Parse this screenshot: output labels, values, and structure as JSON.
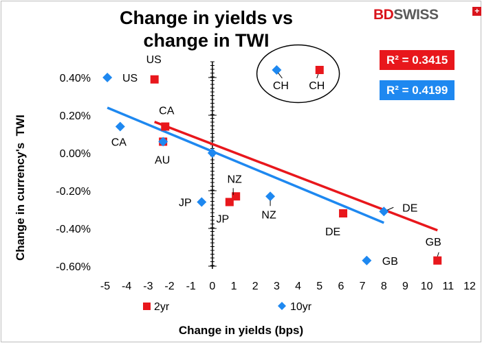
{
  "chart_data": {
    "type": "scatter",
    "title": "Change in yields vs change in TWI",
    "xlabel": "Change in yields (bps)",
    "ylabel": "Change in currency's  TWI",
    "xlim": [
      -5,
      12
    ],
    "ylim": [
      -0.006,
      0.0048
    ],
    "x_ticks": [
      "-5",
      "-4",
      "-3",
      "-2",
      "-1",
      "0",
      "1",
      "2",
      "3",
      "4",
      "5",
      "6",
      "7",
      "8",
      "9",
      "10",
      "11",
      "12"
    ],
    "y_ticks": [
      "0.40%",
      "0.20%",
      "0.00%",
      "-0.20%",
      "-0.40%",
      "-0.60%"
    ],
    "series": [
      {
        "name": "2yr",
        "color": "#e8171c",
        "marker": "square",
        "points": [
          {
            "label": "US",
            "x": -2.7,
            "y": 0.0039
          },
          {
            "label": "CH",
            "x": 5.0,
            "y": 0.0044
          },
          {
            "label": "CA",
            "x": -2.2,
            "y": 0.0014
          },
          {
            "label": "AU",
            "x": -2.3,
            "y": 0.0006
          },
          {
            "label": "NZ",
            "x": 1.1,
            "y": -0.0023
          },
          {
            "label": "JP",
            "x": 0.8,
            "y": -0.0026
          },
          {
            "label": "DE",
            "x": 6.1,
            "y": -0.0032
          },
          {
            "label": "GB",
            "x": 10.5,
            "y": -0.0057
          }
        ],
        "trend": {
          "x": [
            -2.7,
            10.5
          ],
          "y": [
            0.00165,
            -0.0041
          ]
        }
      },
      {
        "name": "10yr",
        "color": "#1e88f0",
        "marker": "diamond",
        "points": [
          {
            "label": "US",
            "x": -4.9,
            "y": 0.004
          },
          {
            "label": "CH",
            "x": 3.0,
            "y": 0.0044
          },
          {
            "label": "CA",
            "x": -4.3,
            "y": 0.0014
          },
          {
            "label": "AU",
            "x": -2.3,
            "y": 0.0006
          },
          {
            "label": "",
            "x": 0.0,
            "y": 0.0
          },
          {
            "label": "JP",
            "x": -0.5,
            "y": -0.0026
          },
          {
            "label": "NZ",
            "x": 2.7,
            "y": -0.0023
          },
          {
            "label": "DE",
            "x": 8.0,
            "y": -0.0031
          },
          {
            "label": "GB",
            "x": 7.2,
            "y": -0.0057
          }
        ],
        "trend": {
          "x": [
            -4.9,
            8.0
          ],
          "y": [
            0.0024,
            -0.0037
          ]
        }
      }
    ],
    "annotations": {
      "r2_2yr": "R² = 0.3415",
      "r2_10yr": "R² = 0.4199"
    },
    "legend_placement": "bottom"
  },
  "logo": {
    "part1": "BD",
    "part2": "SWISS",
    "mark": "+"
  }
}
